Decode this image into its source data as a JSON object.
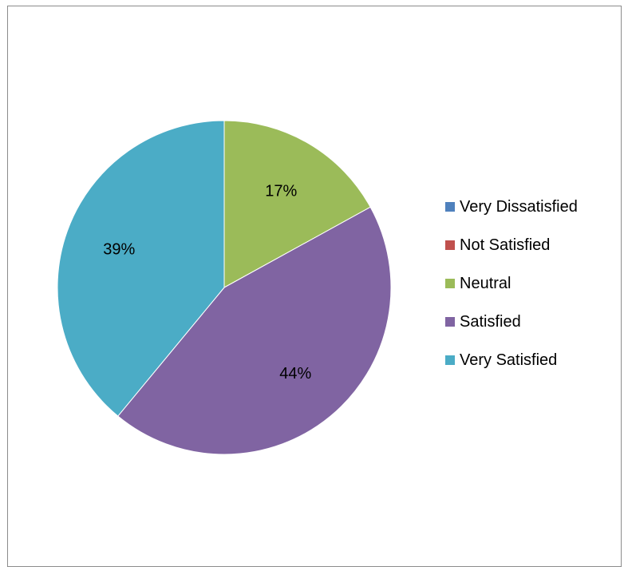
{
  "chart_data": {
    "type": "pie",
    "title": "",
    "legend_position": "right",
    "start_angle_deg": 0,
    "direction": "clockwise",
    "slices": [
      {
        "name": "Very Dissatisfied",
        "value": 0,
        "label": "",
        "color": "#4f81bd"
      },
      {
        "name": "Not Satisfied",
        "value": 0,
        "label": "",
        "color": "#c0504d"
      },
      {
        "name": "Neutral",
        "value": 17,
        "label": "17%",
        "color": "#9bbb59"
      },
      {
        "name": "Satisfied",
        "value": 44,
        "label": "44%",
        "color": "#8064a2"
      },
      {
        "name": "Very Satisfied",
        "value": 39,
        "label": "39%",
        "color": "#4bacc6"
      }
    ]
  }
}
